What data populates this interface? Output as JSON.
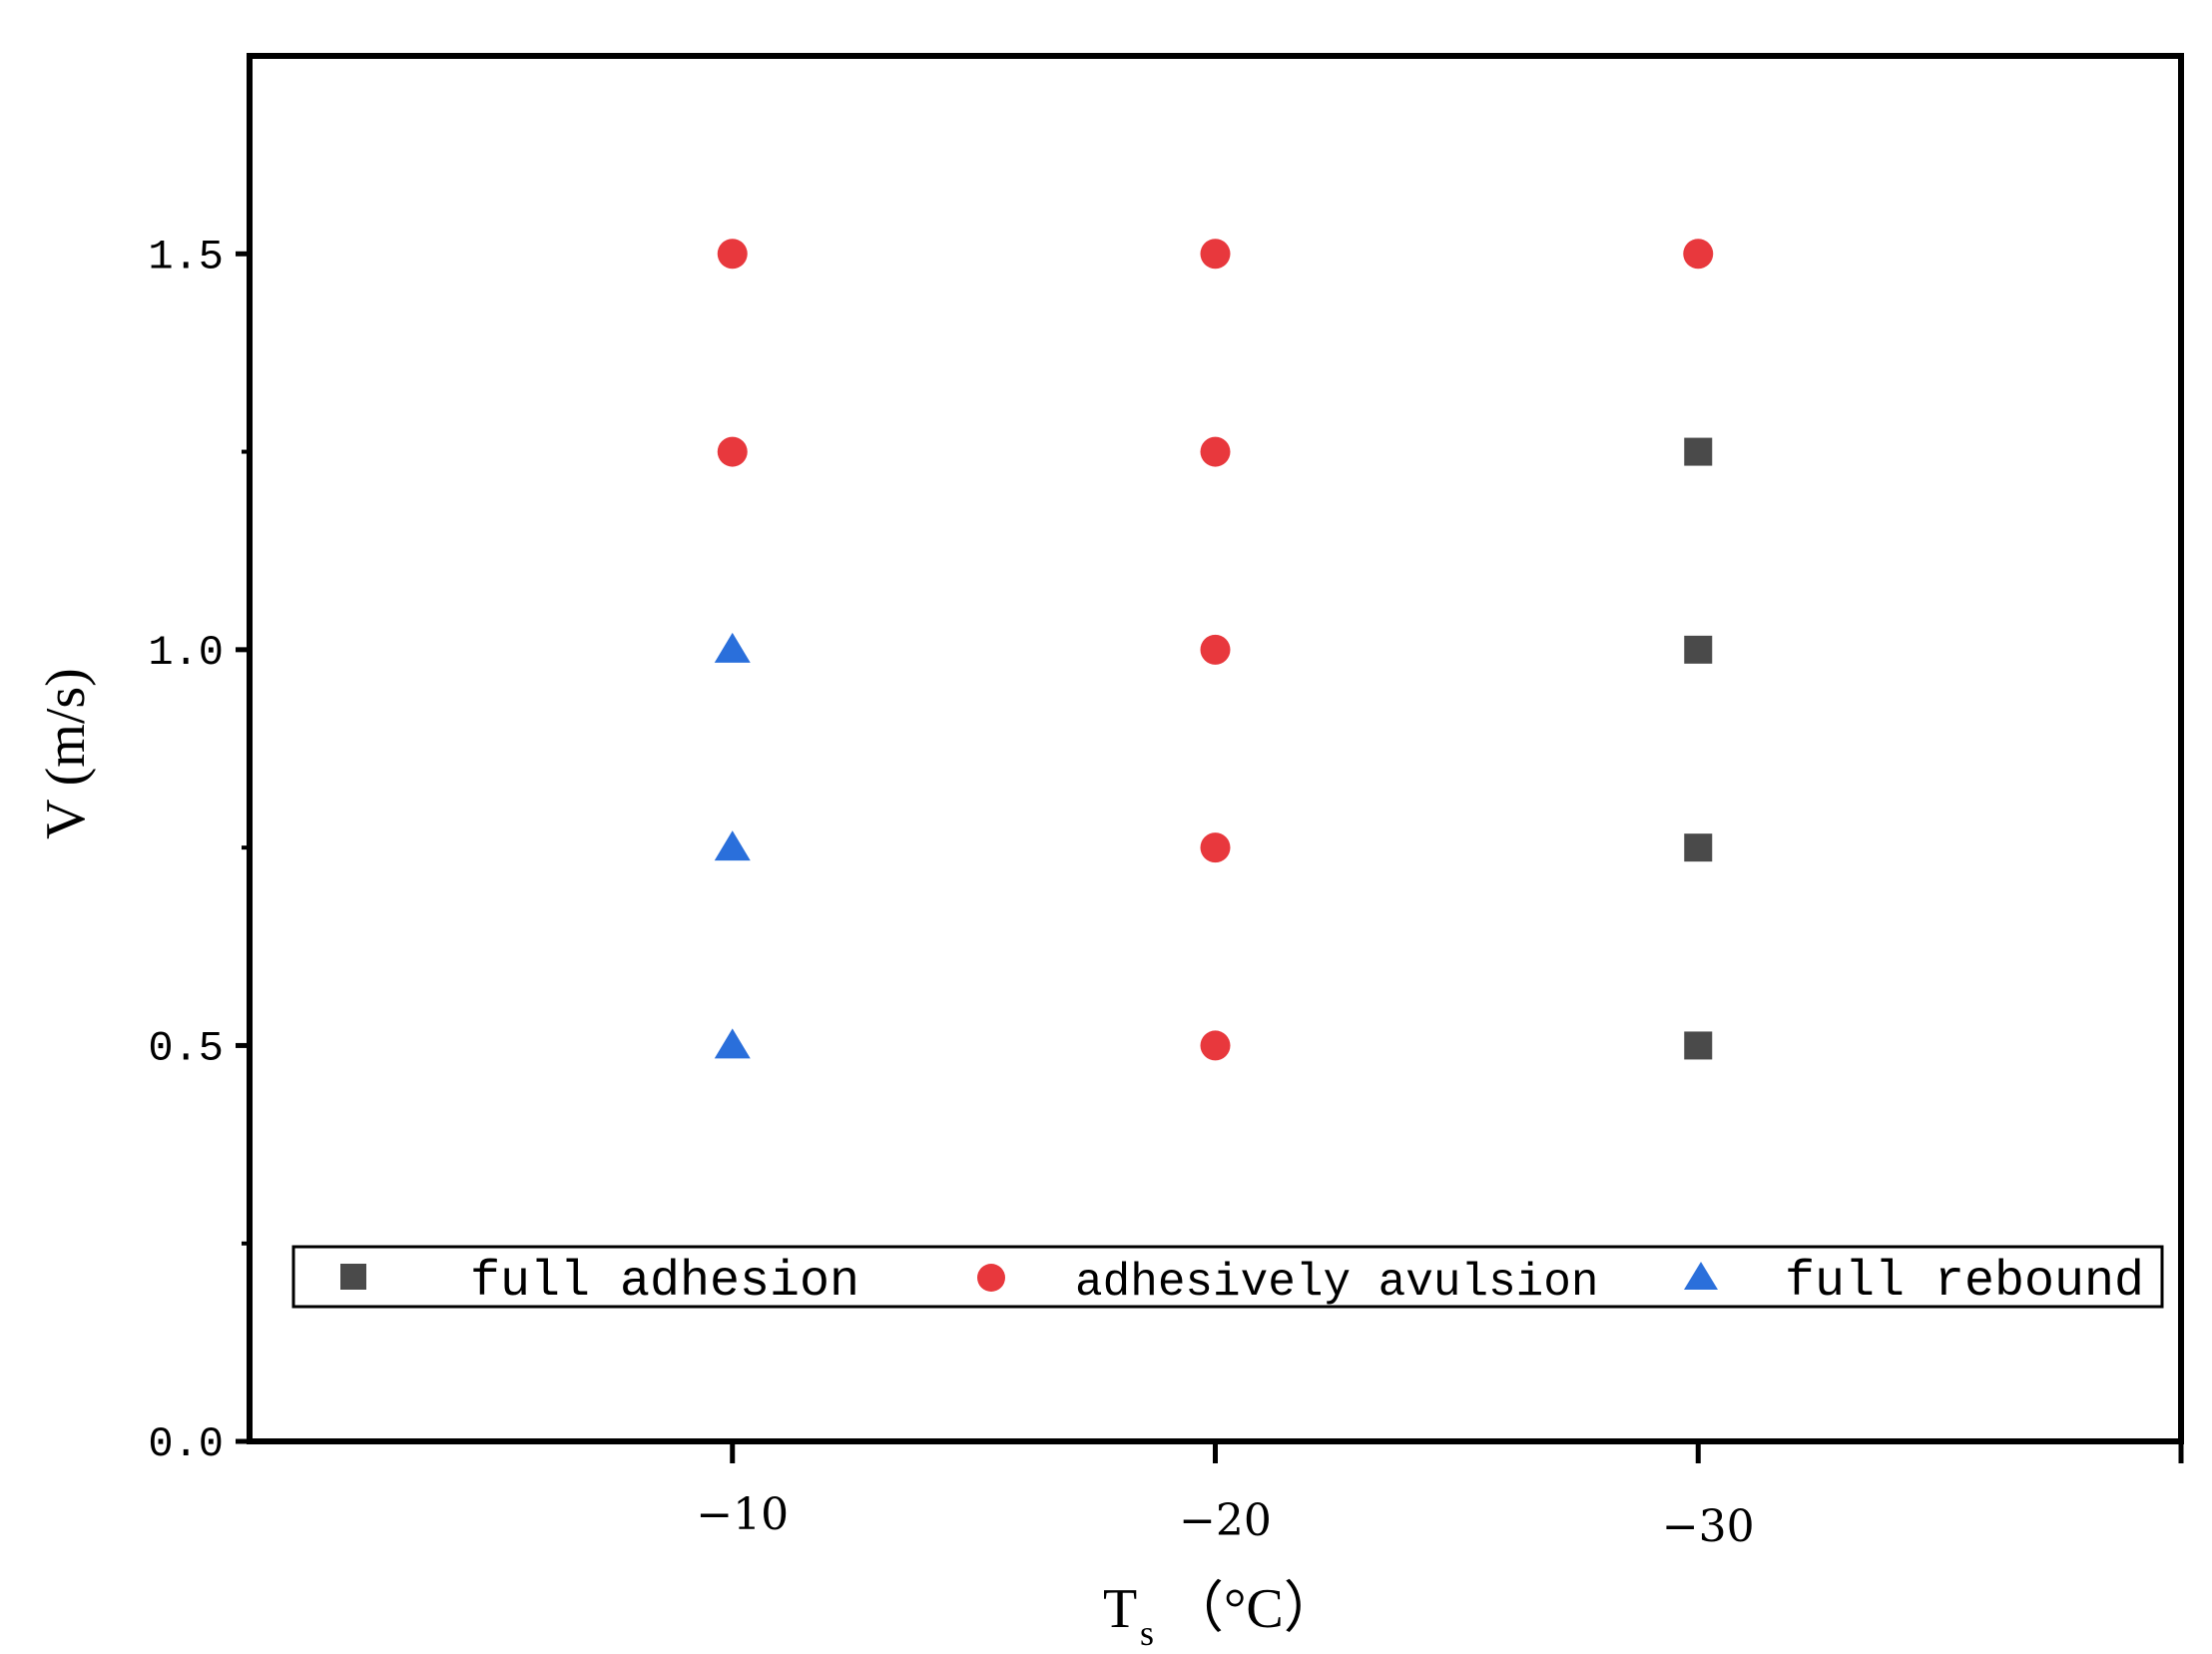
{
  "chart_data": {
    "type": "scatter",
    "xlabel": "T",
    "xlabel_subscript": "s",
    "xlabel_unit": "（°C）",
    "ylabel": "V (m/s)",
    "x_reversed": true,
    "xlim": [
      0,
      -40
    ],
    "ylim": [
      0,
      1.75
    ],
    "x_ticks": [
      -10,
      -20,
      -30
    ],
    "x_tick_labels": [
      "−10",
      "−20",
      "−30"
    ],
    "y_ticks": [
      0,
      0.5,
      1.0,
      1.5
    ],
    "y_tick_labels": [
      "0.0",
      "0.5",
      "1.0",
      "1.5"
    ],
    "y_minor_ticks": [
      0.25,
      0.75,
      1.25
    ],
    "grid": false,
    "legend_position": "bottom (inside plot, single row)",
    "series": [
      {
        "name": "full adhesion",
        "marker": "square",
        "color": "#4a4a4a",
        "points": [
          [
            -30,
            1.25
          ],
          [
            -30,
            1.0
          ],
          [
            -30,
            0.75
          ],
          [
            -30,
            0.5
          ]
        ]
      },
      {
        "name": "adhesively avulsion",
        "marker": "circle",
        "color": "#e8383d",
        "points": [
          [
            -10,
            1.5
          ],
          [
            -10,
            1.25
          ],
          [
            -20,
            1.5
          ],
          [
            -20,
            1.25
          ],
          [
            -20,
            1.0
          ],
          [
            -20,
            0.75
          ],
          [
            -20,
            0.5
          ],
          [
            -30,
            1.5
          ]
        ]
      },
      {
        "name": "full rebound",
        "marker": "triangle",
        "color": "#2a6fdb",
        "points": [
          [
            -10,
            1.0
          ],
          [
            -10,
            0.75
          ],
          [
            -10,
            0.5
          ]
        ]
      }
    ]
  }
}
